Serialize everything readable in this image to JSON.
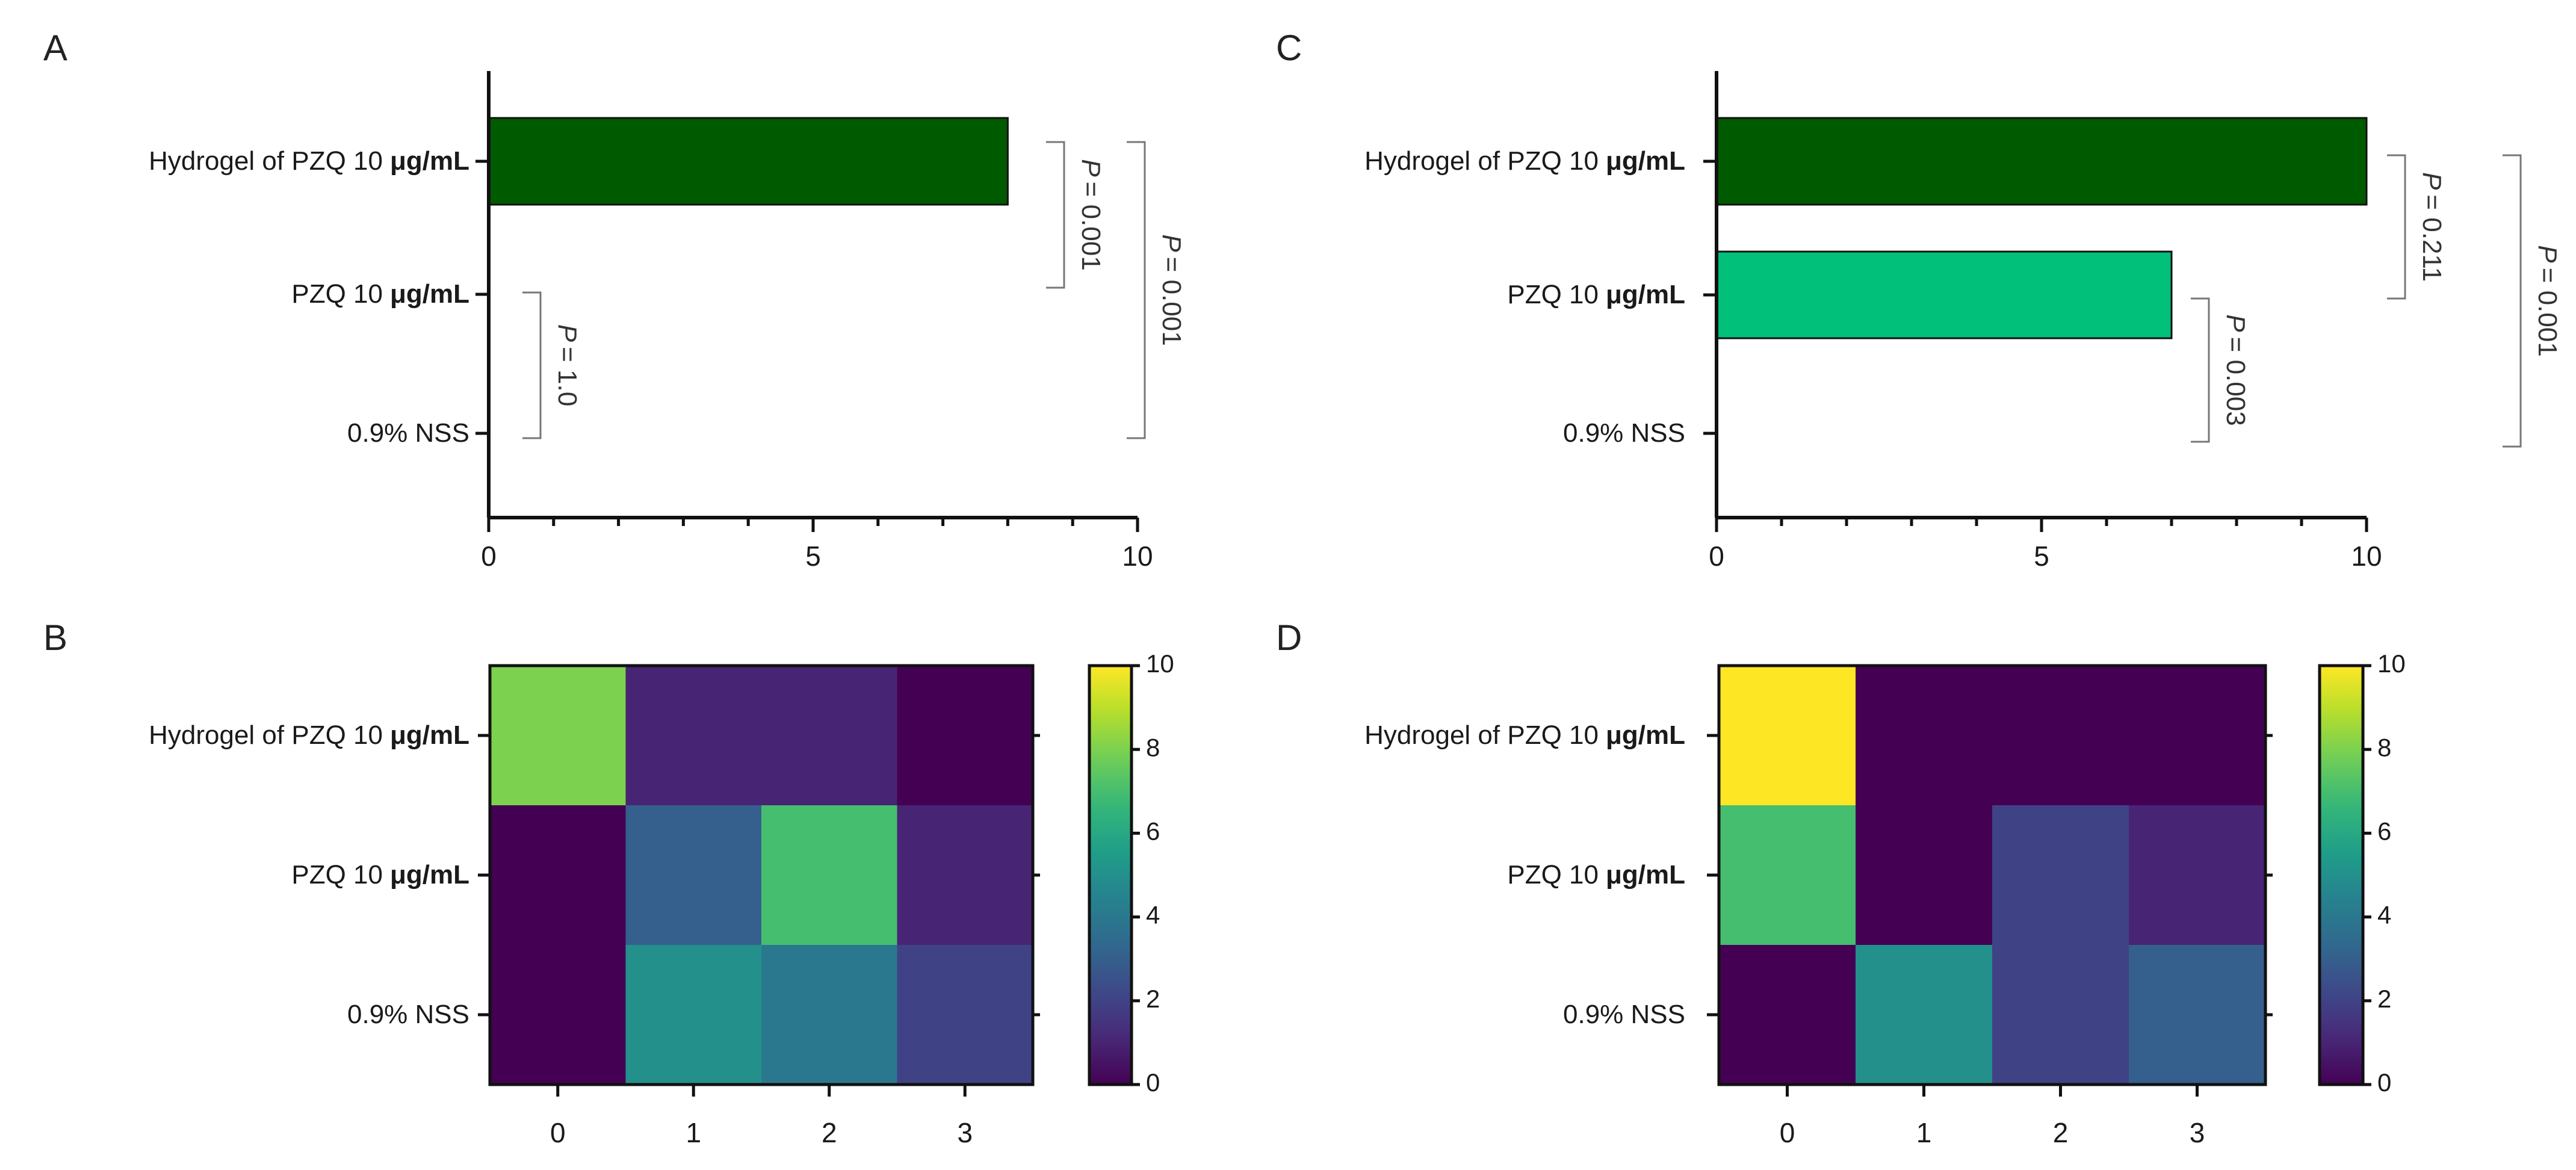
{
  "categories": [
    "Hydrogel of PZQ 10",
    "PZQ 10",
    "0.9% NSS"
  ],
  "unit": "μg/mL",
  "colors": {
    "bar_dark": "#005a00",
    "bar_light": "#00c07a",
    "viridis": [
      "#440154",
      "#482878",
      "#3e4989",
      "#31688e",
      "#26828e",
      "#1f9e89",
      "#35b779",
      "#6ece58",
      "#b5de2b",
      "#fde725"
    ]
  },
  "chart_data": [
    {
      "panel": "A",
      "type": "bar",
      "orientation": "horizontal",
      "categories": [
        "Hydrogel of PZQ 10 μg/mL",
        "PZQ 10 μg/mL",
        "0.9% NSS"
      ],
      "values": [
        8,
        0,
        0
      ],
      "xlim": [
        0,
        10
      ],
      "xticks": [
        "0",
        "5",
        "10"
      ],
      "annotations": [
        {
          "pair": [
            0,
            1
          ],
          "label": "= 0.001",
          "p": "P"
        },
        {
          "pair": [
            1,
            2
          ],
          "label": "= 1.0",
          "p": "P"
        },
        {
          "pair": [
            0,
            2
          ],
          "label": "= 0.001",
          "p": "P"
        }
      ]
    },
    {
      "panel": "C",
      "type": "bar",
      "orientation": "horizontal",
      "categories": [
        "Hydrogel of PZQ 10 μg/mL",
        "PZQ 10 μg/mL",
        "0.9% NSS"
      ],
      "values": [
        10,
        7,
        0
      ],
      "xlim": [
        0,
        10
      ],
      "xticks": [
        "0",
        "5",
        "10"
      ],
      "annotations": [
        {
          "pair": [
            0,
            1
          ],
          "label": "= 0.211",
          "p": "P"
        },
        {
          "pair": [
            1,
            2
          ],
          "label": "= 0.003",
          "p": "P"
        },
        {
          "pair": [
            0,
            2
          ],
          "label": "= 0.001",
          "p": "P"
        }
      ]
    },
    {
      "panel": "B",
      "type": "heatmap",
      "rows": [
        "Hydrogel of PZQ 10 μg/mL",
        "PZQ 10 μg/mL",
        "0.9% NSS"
      ],
      "columns": [
        "0",
        "1",
        "2",
        "3"
      ],
      "values": [
        [
          8,
          1,
          1,
          0
        ],
        [
          0,
          3,
          7,
          1
        ],
        [
          0,
          5,
          4,
          2
        ]
      ],
      "colorbar": {
        "min": 0,
        "max": 10,
        "ticks": [
          "0",
          "2",
          "4",
          "6",
          "8",
          "10"
        ]
      }
    },
    {
      "panel": "D",
      "type": "heatmap",
      "rows": [
        "Hydrogel of PZQ 10 μg/mL",
        "PZQ 10 μg/mL",
        "0.9% NSS"
      ],
      "columns": [
        "0",
        "1",
        "2",
        "3"
      ],
      "values": [
        [
          10,
          0,
          0,
          0
        ],
        [
          7,
          0,
          2,
          1
        ],
        [
          0,
          5,
          2,
          3
        ]
      ],
      "colorbar": {
        "min": 0,
        "max": 10,
        "ticks": [
          "0",
          "2",
          "4",
          "6",
          "8",
          "10"
        ]
      }
    }
  ]
}
